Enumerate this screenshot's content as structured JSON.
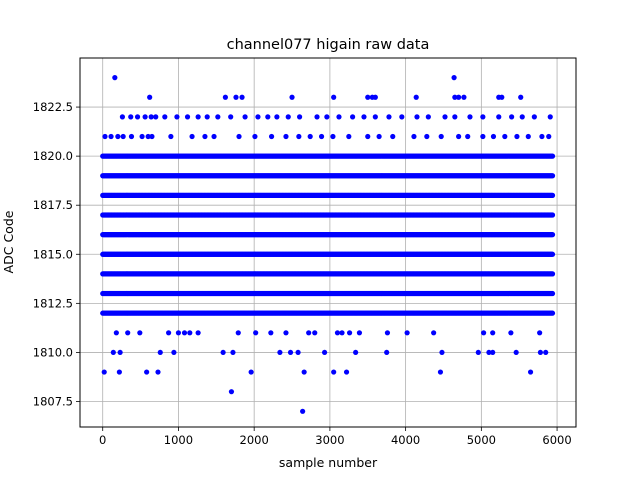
{
  "chart_data": {
    "type": "scatter",
    "title": "channel077 higain raw data",
    "xlabel": "sample number",
    "ylabel": "ADC Code",
    "xlim": [
      -300,
      6250
    ],
    "ylim": [
      1806.2,
      1825.0
    ],
    "x_ticks": [
      0,
      1000,
      2000,
      3000,
      4000,
      5000,
      6000
    ],
    "x_tick_labels": [
      "0",
      "1000",
      "2000",
      "3000",
      "4000",
      "5000",
      "6000"
    ],
    "y_ticks": [
      1807.5,
      1810.0,
      1812.5,
      1815.0,
      1817.5,
      1820.0,
      1822.5
    ],
    "y_tick_labels": [
      "1807.5",
      "1810.0",
      "1812.5",
      "1815.0",
      "1817.5",
      "1820.0",
      "1822.5"
    ],
    "grid": true,
    "marker_color": "#0000ff",
    "series": [
      {
        "dense_levels": [
          {
            "y": 1812,
            "x_range": [
              0,
              5940
            ],
            "step": 15
          },
          {
            "y": 1813,
            "x_range": [
              0,
              5940
            ],
            "step": 12
          },
          {
            "y": 1814,
            "x_range": [
              0,
              5940
            ],
            "step": 10
          },
          {
            "y": 1815,
            "x_range": [
              0,
              5940
            ],
            "step": 10
          },
          {
            "y": 1816,
            "x_range": [
              0,
              5940
            ],
            "step": 10
          },
          {
            "y": 1817,
            "x_range": [
              0,
              5940
            ],
            "step": 10
          },
          {
            "y": 1818,
            "x_range": [
              0,
              5940
            ],
            "step": 10
          },
          {
            "y": 1819,
            "x_range": [
              0,
              5940
            ],
            "step": 12
          },
          {
            "y": 1820,
            "x_range": [
              0,
              5940
            ],
            "step": 15
          }
        ],
        "sparse_points": {
          "1807": [
            2640
          ],
          "1808": [
            1700
          ],
          "1809": [
            20,
            220,
            580,
            730,
            1960,
            2660,
            3050,
            3220,
            4460,
            5650
          ],
          "1810": [
            140,
            230,
            760,
            940,
            1590,
            1720,
            2340,
            2480,
            2580,
            2930,
            3340,
            3750,
            4480,
            4960,
            5100,
            5150,
            5460,
            5780,
            5850
          ],
          "1811": [
            180,
            330,
            490,
            870,
            1000,
            1080,
            1150,
            1260,
            1790,
            2020,
            2220,
            2420,
            2720,
            2800,
            3100,
            3160,
            3260,
            3390,
            3760,
            4020,
            4370,
            5030,
            5150,
            5390,
            5770
          ],
          "1821": [
            30,
            110,
            200,
            270,
            380,
            520,
            600,
            650,
            900,
            1180,
            1350,
            1470,
            1800,
            2010,
            2230,
            2420,
            2590,
            2740,
            2890,
            3040,
            3250,
            3500,
            3650,
            3830,
            4110,
            4280,
            4470,
            4700,
            4820,
            5020,
            5160,
            5310,
            5470,
            5620,
            5800,
            5890
          ],
          "1822": [
            260,
            370,
            460,
            560,
            640,
            700,
            820,
            980,
            1120,
            1260,
            1380,
            1520,
            1690,
            1880,
            2050,
            2180,
            2300,
            2450,
            2600,
            2830,
            2960,
            3120,
            3300,
            3450,
            3600,
            3780,
            3950,
            4150,
            4300,
            4520,
            4650,
            4850,
            5020,
            5230,
            5400,
            5540,
            5700,
            5910
          ],
          "1823": [
            620,
            1620,
            1760,
            1840,
            2500,
            3050,
            3500,
            3560,
            3600,
            4140,
            4650,
            4700,
            4770,
            5230,
            5270,
            5520
          ],
          "1824": [
            160,
            4640
          ]
        }
      }
    ]
  }
}
